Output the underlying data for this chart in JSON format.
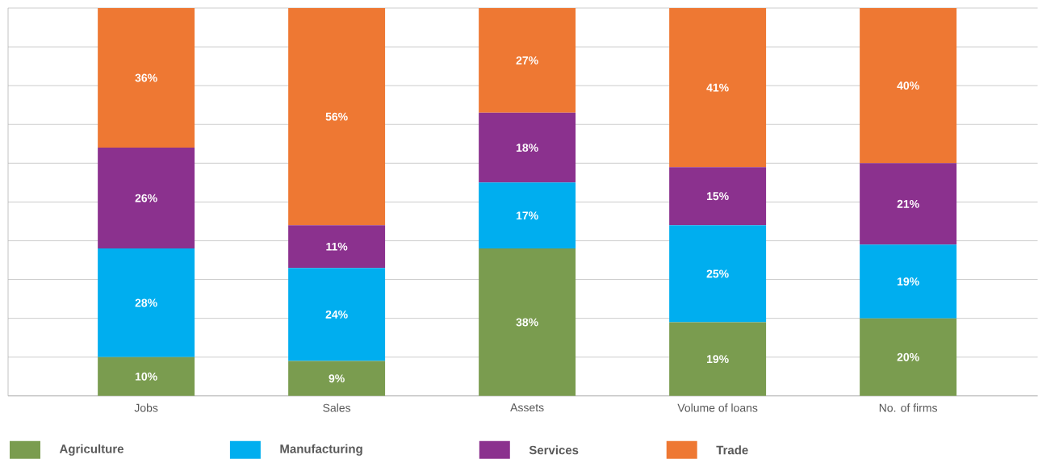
{
  "chart_data": {
    "type": "bar",
    "stacked": true,
    "categories": [
      "Jobs",
      "Sales",
      "Assets",
      "Volume of loans",
      "No. of firms"
    ],
    "series": [
      {
        "name": "Agriculture",
        "color": "#7a9c4f",
        "values": [
          10,
          9,
          38,
          19,
          20
        ],
        "value_labels": [
          "10%",
          "9%",
          "38%",
          "19%",
          "20%"
        ]
      },
      {
        "name": "Manufacturing",
        "color": "#00aeef",
        "values": [
          28,
          24,
          17,
          25,
          19
        ],
        "value_labels": [
          "28%",
          "24%",
          "17%",
          "25%",
          "19%"
        ]
      },
      {
        "name": "Services",
        "color": "#8b318e",
        "values": [
          26,
          11,
          18,
          15,
          21
        ],
        "value_labels": [
          "26%",
          "11%",
          "18%",
          "15%",
          "21%"
        ]
      },
      {
        "name": "Trade",
        "color": "#ee7833",
        "values": [
          36,
          56,
          27,
          41,
          40
        ],
        "value_labels": [
          "36%",
          "56%",
          "27%",
          "41%",
          "40%"
        ]
      }
    ],
    "ylim": [
      0,
      100
    ],
    "yticks": [
      {
        "value": 0,
        "label": null
      },
      {
        "value": 10,
        "label": null
      },
      {
        "value": 20,
        "label": null
      },
      {
        "value": 30,
        "label": null
      },
      {
        "value": 40,
        "label": null
      },
      {
        "value": 50,
        "label": null
      },
      {
        "value": 60,
        "label": null
      },
      {
        "value": 70,
        "label": null
      },
      {
        "value": 80,
        "label": null
      },
      {
        "value": 90,
        "label": null
      },
      {
        "value": 100,
        "label": null
      }
    ],
    "tick_labels": "x",
    "grid": "y",
    "legend": "bottom"
  }
}
